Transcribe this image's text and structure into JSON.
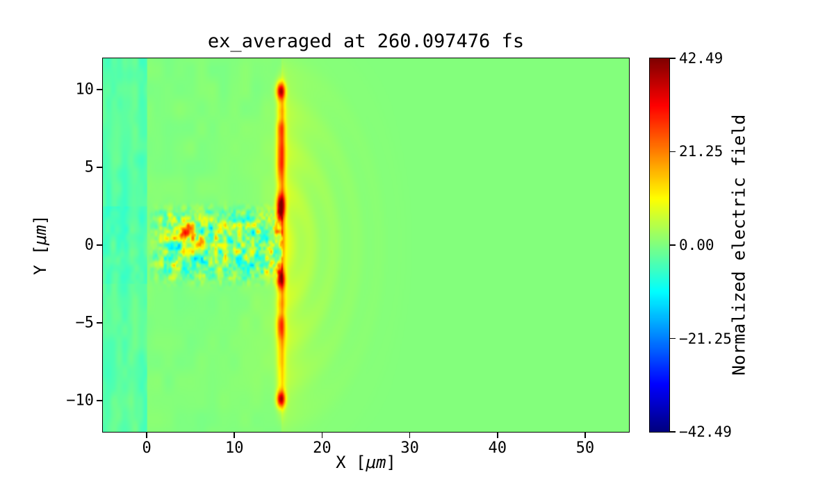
{
  "chart_data": {
    "type": "heatmap",
    "title": "ex_averaged at 260.097476 fs",
    "xlabel": {
      "prefix": "X [",
      "math": "μm",
      "suffix": "]"
    },
    "ylabel": {
      "prefix": "Y [",
      "math": "μm",
      "suffix": "]"
    },
    "xlim": [
      -5,
      55
    ],
    "ylim": [
      -12,
      12
    ],
    "xticks": [
      {
        "v": 0,
        "label": "0"
      },
      {
        "v": 10,
        "label": "10"
      },
      {
        "v": 20,
        "label": "20"
      },
      {
        "v": 30,
        "label": "30"
      },
      {
        "v": 40,
        "label": "40"
      },
      {
        "v": 50,
        "label": "50"
      }
    ],
    "yticks": [
      {
        "v": 10,
        "label": "10"
      },
      {
        "v": 5,
        "label": "5"
      },
      {
        "v": 0,
        "label": "0"
      },
      {
        "v": -5,
        "label": "−5"
      },
      {
        "v": -10,
        "label": "−10"
      }
    ],
    "colorbar": {
      "label": "Normalized electric field",
      "colormap": "jet",
      "vmin": -42.49,
      "vmax": 42.49,
      "ticks": [
        {
          "v": 42.49,
          "label": "42.49"
        },
        {
          "v": 21.25,
          "label": "21.25"
        },
        {
          "v": 0,
          "label": "0.00"
        },
        {
          "v": -21.25,
          "label": "−21.25"
        },
        {
          "v": -42.49,
          "label": "−42.49"
        }
      ]
    },
    "description": "2D laser-plasma simulation field map: uniform green background (field ~0), slightly cyan slab left of x=0, turbulent speckled channel along y=0 from x=0 to x=15, strong yellow-orange vertical field strip at x~15 spanning |y|<10 with dark-red hotspots, and faint concentric wave arcs radiating right of the strip out to x~31.",
    "features": {
      "background_value": 0.3,
      "left_slab": {
        "x_end": 0,
        "base": -3.2
      },
      "channel": {
        "x_end": 15.5,
        "half_width": 2.3,
        "noise_amp": 26,
        "blobs": [
          {
            "x": 4.4,
            "y": 0.8,
            "amp": 27,
            "rx": 0.85,
            "ry": 0.45
          },
          {
            "x": 6.2,
            "y": 0.3,
            "amp": 12,
            "rx": 1.0,
            "ry": 0.5
          }
        ]
      },
      "strip": {
        "x": 15.3,
        "sigma": 0.47,
        "half_length": 10.3,
        "base_amp": 13,
        "hotspots": [
          {
            "y": 9.9,
            "amp": 32,
            "sigma": 0.5
          },
          {
            "y": 7.5,
            "amp": 10,
            "sigma": 0.9
          },
          {
            "y": 5.5,
            "amp": 12,
            "sigma": 1.2
          },
          {
            "y": 2.5,
            "amp": 34,
            "sigma": 0.7
          },
          {
            "y": -2.2,
            "amp": 26,
            "sigma": 0.6
          },
          {
            "y": -5.2,
            "amp": 10,
            "sigma": 0.8
          },
          {
            "y": -9.9,
            "amp": 32,
            "sigma": 0.5
          }
        ]
      },
      "waves": {
        "extent": 16,
        "wavelength": 2.6,
        "amp": 3.5
      },
      "glow": {
        "amp": 6.5,
        "decay": 2.4,
        "half_height": 11
      }
    }
  }
}
